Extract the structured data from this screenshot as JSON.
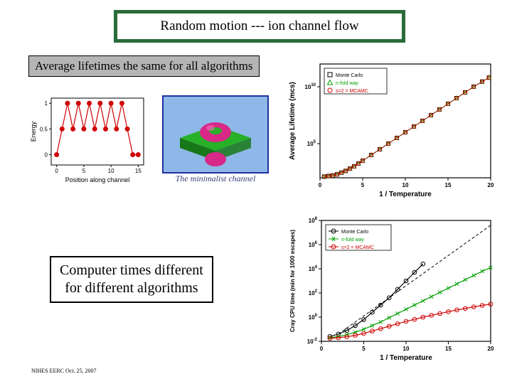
{
  "title": "Random motion --- ion channel flow",
  "subtitle1": "Average lifetimes the same for all algorithms",
  "subtitle2_line1": "Computer times different",
  "subtitle2_line2": "for different algorithms",
  "footer": "NIHES EERC Oct. 25, 2007",
  "energy_chart": {
    "type": "line+marker",
    "xlabel": "Position along channel",
    "ylabel": "Energy",
    "xlim": [
      -1,
      16
    ],
    "ylim": [
      -0.2,
      1.1
    ],
    "xticks": [
      0,
      5,
      10,
      15
    ],
    "yticks": [
      0,
      0.5,
      1
    ],
    "points": [
      {
        "x": 0,
        "y": 0
      },
      {
        "x": 1,
        "y": 0.5
      },
      {
        "x": 2,
        "y": 1
      },
      {
        "x": 3,
        "y": 0.5
      },
      {
        "x": 4,
        "y": 1
      },
      {
        "x": 5,
        "y": 0.5
      },
      {
        "x": 6,
        "y": 1
      },
      {
        "x": 7,
        "y": 0.5
      },
      {
        "x": 8,
        "y": 1
      },
      {
        "x": 9,
        "y": 0.5
      },
      {
        "x": 10,
        "y": 1
      },
      {
        "x": 11,
        "y": 0.5
      },
      {
        "x": 12,
        "y": 1
      },
      {
        "x": 13,
        "y": 0.5
      },
      {
        "x": 14,
        "y": 0
      },
      {
        "x": 15,
        "y": 0
      }
    ],
    "line_color": "#d00000",
    "marker_color": "#d00000",
    "marker_size": 3.5,
    "label_fontsize": 9,
    "tick_fontsize": 8,
    "axis_color": "#000000"
  },
  "model3d": {
    "caption": "The minimalist channel",
    "bg": "#8eb8e8",
    "slab_color": "#28b028",
    "slab_shadow": "#187818",
    "sphere_color": "#d82888",
    "sphere_highlight": "#f070b0",
    "border_color": "#2030a0"
  },
  "lifetime_chart": {
    "type": "semilogy",
    "xlabel": "1 / Temperature",
    "ylabel": "Average Lifetime (mcs)",
    "xlim": [
      0,
      20
    ],
    "xticks": [
      0,
      5,
      10,
      15,
      20
    ],
    "ylim_exp": [
      2,
      12
    ],
    "yticks_exp": [
      5,
      10
    ],
    "legend": [
      {
        "label": "Monte Carlo",
        "marker": "square",
        "color": "#000000"
      },
      {
        "label": "n-fold way",
        "marker": "triangle",
        "color": "#00a000"
      },
      {
        "label": "s=2 = MCAMC",
        "marker": "circle",
        "color": "#d00000"
      }
    ],
    "series": [
      {
        "color": "#000000",
        "marker": "square"
      },
      {
        "color": "#00a000",
        "marker": "triangle"
      },
      {
        "color": "#d00000",
        "marker": "circle"
      }
    ],
    "curve_xy": [
      [
        0.5,
        2.1
      ],
      [
        1,
        2.15
      ],
      [
        1.5,
        2.2
      ],
      [
        2,
        2.3
      ],
      [
        2.5,
        2.45
      ],
      [
        3,
        2.6
      ],
      [
        3.5,
        2.8
      ],
      [
        4,
        3.0
      ],
      [
        4.5,
        3.25
      ],
      [
        5,
        3.5
      ],
      [
        6,
        4.0
      ],
      [
        7,
        4.5
      ],
      [
        8,
        5.0
      ],
      [
        9,
        5.5
      ],
      [
        10,
        6.0
      ],
      [
        11,
        6.5
      ],
      [
        12,
        7.0
      ],
      [
        13,
        7.5
      ],
      [
        14,
        8.0
      ],
      [
        15,
        8.5
      ],
      [
        16,
        9.0
      ],
      [
        17,
        9.5
      ],
      [
        18,
        10.0
      ],
      [
        19,
        10.45
      ],
      [
        19.8,
        10.8
      ]
    ],
    "axis_color": "#000000",
    "label_fontsize": 10,
    "tick_fontsize": 8
  },
  "cpu_chart": {
    "type": "semilogy",
    "xlabel": "1 / Temperature",
    "ylabel": "Cray CPU time (min for 1000 escapes)",
    "xlim": [
      0,
      20
    ],
    "xticks": [
      0,
      5,
      10,
      15,
      20
    ],
    "ylim_exp": [
      -2,
      8
    ],
    "yticks_exp": [
      -2,
      0,
      2,
      4,
      6,
      8
    ],
    "legend": [
      {
        "label": "Monte Carlo",
        "marker": "circle",
        "color": "#000000"
      },
      {
        "label": "n-fold way",
        "marker": "x",
        "color": "#00a000"
      },
      {
        "label": "s=2 = MCAMC",
        "marker": "circle",
        "color": "#d00000"
      }
    ],
    "dashed_color": "#000000",
    "series": [
      {
        "name": "mc",
        "color": "#000000",
        "marker": "circle",
        "xy": [
          [
            1,
            -1.6
          ],
          [
            2,
            -1.4
          ],
          [
            3,
            -1.1
          ],
          [
            4,
            -0.7
          ],
          [
            5,
            -0.2
          ],
          [
            6,
            0.4
          ],
          [
            7,
            1.0
          ],
          [
            8,
            1.6
          ],
          [
            9,
            2.3
          ],
          [
            10,
            3.0
          ],
          [
            11,
            3.7
          ],
          [
            12,
            4.4
          ]
        ]
      },
      {
        "name": "nfold",
        "color": "#00a000",
        "marker": "x",
        "xy": [
          [
            1,
            -1.7
          ],
          [
            2,
            -1.6
          ],
          [
            3,
            -1.45
          ],
          [
            4,
            -1.25
          ],
          [
            5,
            -1.0
          ],
          [
            6,
            -0.7
          ],
          [
            7,
            -0.4
          ],
          [
            8,
            -0.05
          ],
          [
            9,
            0.3
          ],
          [
            10,
            0.65
          ],
          [
            11,
            1.0
          ],
          [
            12,
            1.35
          ],
          [
            13,
            1.7
          ],
          [
            14,
            2.05
          ],
          [
            15,
            2.4
          ],
          [
            16,
            2.75
          ],
          [
            17,
            3.1
          ],
          [
            18,
            3.45
          ],
          [
            19,
            3.8
          ],
          [
            20,
            4.1
          ]
        ]
      },
      {
        "name": "mcamc",
        "color": "#d00000",
        "marker": "circle",
        "xy": [
          [
            1,
            -1.75
          ],
          [
            2,
            -1.7
          ],
          [
            3,
            -1.62
          ],
          [
            4,
            -1.5
          ],
          [
            5,
            -1.35
          ],
          [
            6,
            -1.15
          ],
          [
            7,
            -0.95
          ],
          [
            8,
            -0.75
          ],
          [
            9,
            -0.55
          ],
          [
            10,
            -0.35
          ],
          [
            11,
            -0.18
          ],
          [
            12,
            0.0
          ],
          [
            13,
            0.15
          ],
          [
            14,
            0.3
          ],
          [
            15,
            0.45
          ],
          [
            16,
            0.6
          ],
          [
            17,
            0.72
          ],
          [
            18,
            0.85
          ],
          [
            19,
            0.97
          ],
          [
            20,
            1.08
          ]
        ]
      }
    ],
    "dashed_xy": [
      [
        2,
        -1.4
      ],
      [
        20,
        7.6
      ]
    ],
    "axis_color": "#000000",
    "label_fontsize": 10,
    "tick_fontsize": 8
  }
}
